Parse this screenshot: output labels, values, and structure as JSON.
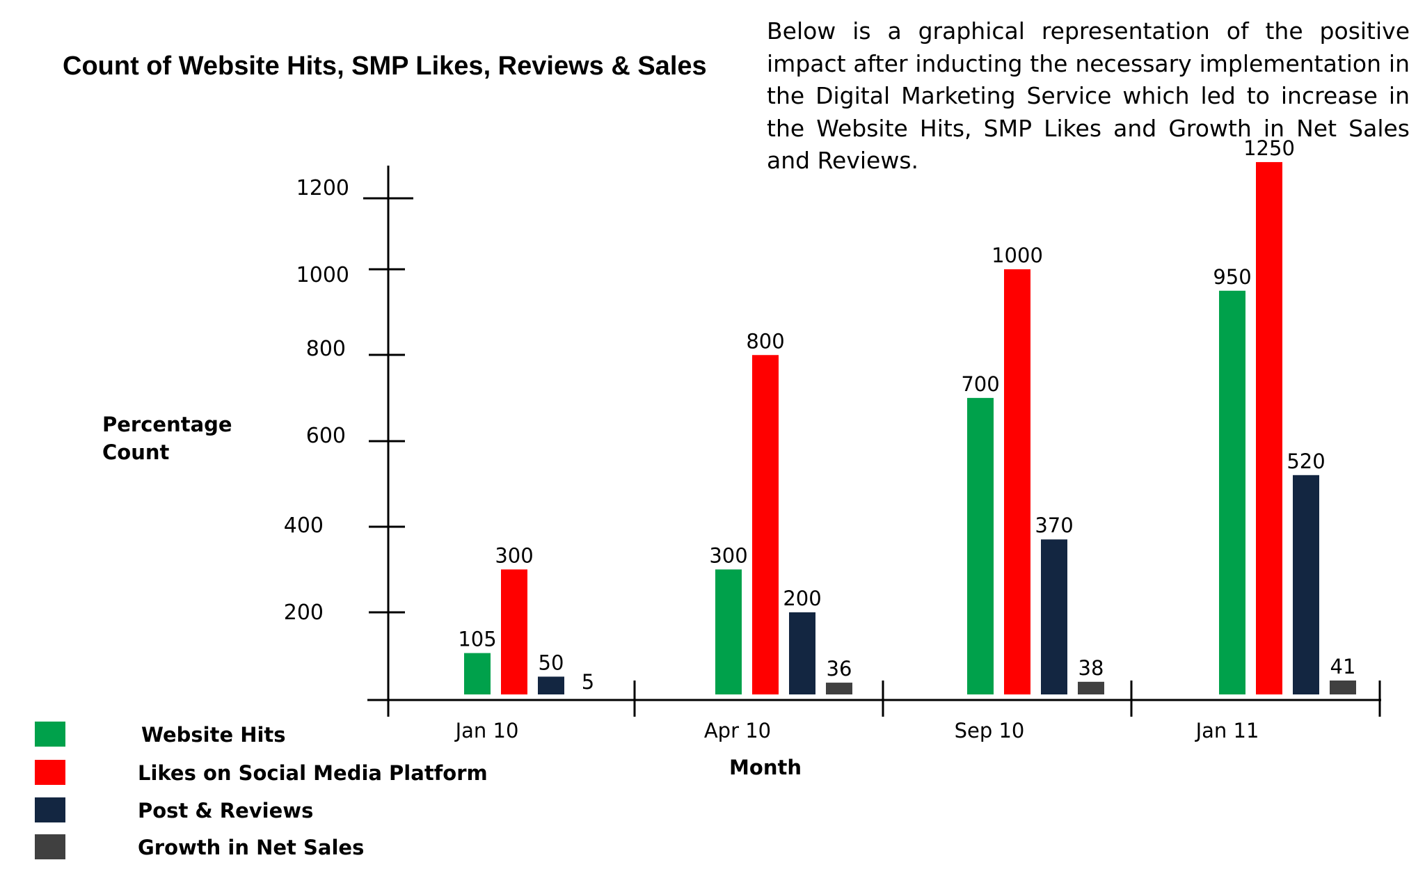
{
  "title": "Count of Website Hits, SMP Likes, Reviews & Sales",
  "description": "Below is a graphical representation of the positive impact after inducting the necessary implementation in the Digital Marketing Service which led to increase in the Website Hits, SMP Likes and Growth in Net Sales and Reviews.",
  "chart_data": {
    "type": "bar",
    "title": "Count of Website Hits, SMP Likes, Reviews & Sales",
    "xlabel": "Month",
    "ylabel": "Percentage Count",
    "ylim": [
      0,
      1250
    ],
    "yticks": [
      200,
      400,
      600,
      800,
      1000,
      1200
    ],
    "categories": [
      "Jan 10",
      "Apr 10",
      "Sep 10",
      "Jan 11"
    ],
    "series": [
      {
        "name": "Website Hits",
        "color": "#00a14b",
        "values": [
          105,
          300,
          700,
          950
        ]
      },
      {
        "name": "Likes on Social Media Platform",
        "color": "#ff0000",
        "values": [
          300,
          800,
          1000,
          1250
        ]
      },
      {
        "name": "Post & Reviews",
        "color": "#132641",
        "values": [
          50,
          200,
          370,
          520
        ]
      },
      {
        "name": "Growth  in Net Sales",
        "color": "#404040",
        "values": [
          5,
          36,
          38,
          41
        ]
      }
    ],
    "legend_placement": "bottom-left",
    "grid": false
  }
}
